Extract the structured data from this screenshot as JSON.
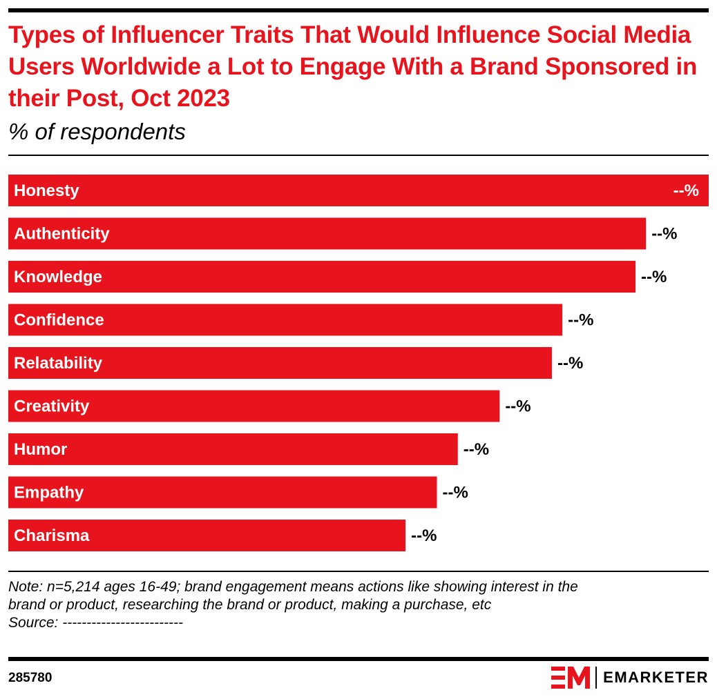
{
  "header": {
    "title": "Types of Influencer Traits That Would Influence Social Media Users Worldwide a Lot to Engage With a Brand Sponsored in their Post, Oct 2023",
    "subtitle": "% of respondents"
  },
  "chart_data": {
    "type": "bar",
    "orientation": "horizontal",
    "title": "Types of Influencer Traits That Would Influence Social Media Users Worldwide a Lot to Engage With a Brand Sponsored in their Post, Oct 2023",
    "subtitle": "% of respondents",
    "categories": [
      "Honesty",
      "Authenticity",
      "Knowledge",
      "Confidence",
      "Relatability",
      "Creativity",
      "Humor",
      "Empathy",
      "Charisma"
    ],
    "values": [
      67,
      61,
      60,
      53,
      52,
      47,
      43,
      41,
      38
    ],
    "value_labels": [
      "--%",
      "--%",
      "--%",
      "--%",
      "--%",
      "--%",
      "--%",
      "--%",
      "--%"
    ],
    "xlim": [
      0,
      67
    ],
    "bar_color": "#e8141d",
    "grid": false
  },
  "footer": {
    "note_line1": "Note: n=5,214 ages 16-49; brand engagement means actions like showing interest in the",
    "note_line2": "brand or product, researching the brand or product, making a purchase, etc",
    "source": "Source: -------------------------",
    "chart_id": "285780",
    "brand": "EMARKETER"
  }
}
